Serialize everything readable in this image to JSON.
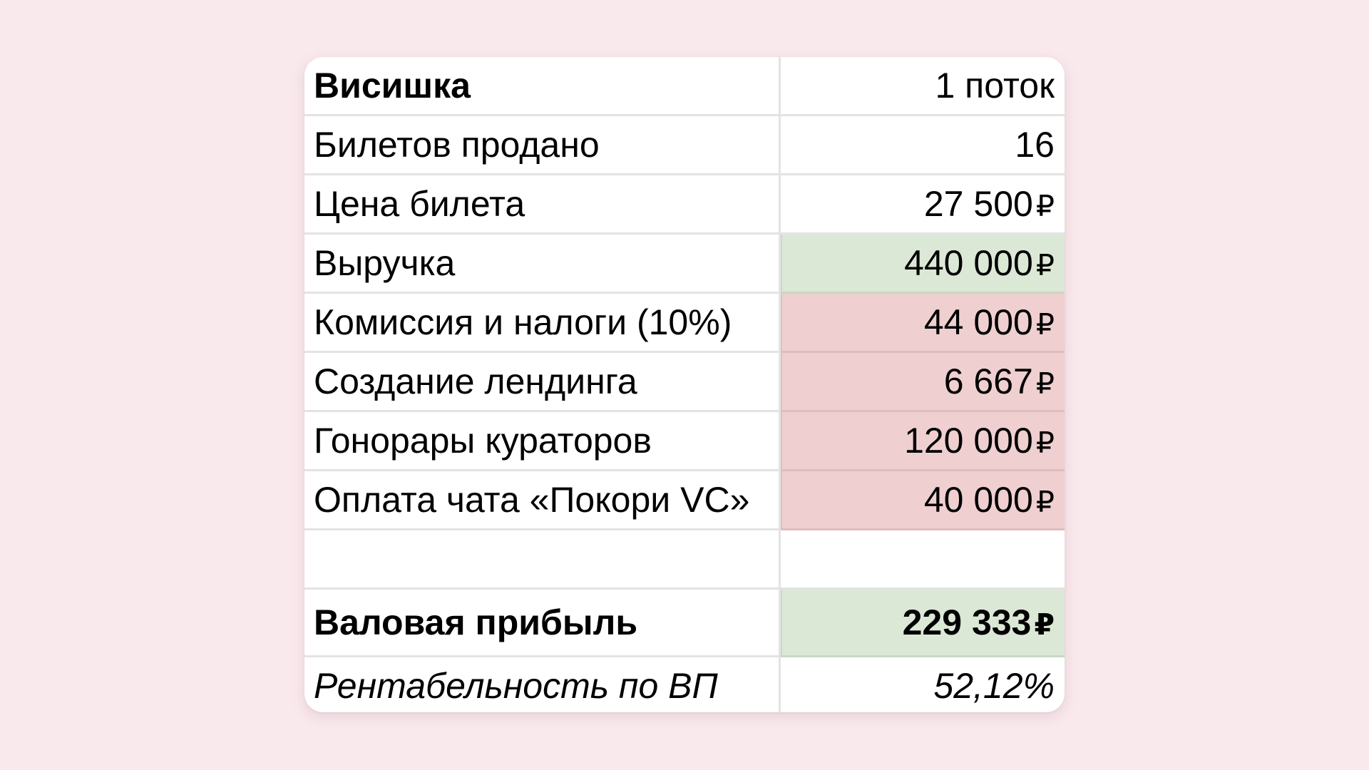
{
  "colors": {
    "page_background": "#f9e8ec",
    "card_background": "#ffffff",
    "gridline": "#e3e3e3",
    "revenue_fill": "#dce8d6",
    "expense_fill": "#efcfd0",
    "profit_fill": "#dce8d6"
  },
  "table": {
    "header": {
      "label": "Висишка",
      "value": "1 поток"
    },
    "rows": [
      {
        "label": "Билетов продано",
        "value": "16",
        "currency": ""
      },
      {
        "label": "Цена билета",
        "value": "27 500",
        "currency": "₽"
      },
      {
        "label": "Выручка",
        "value": "440 000",
        "currency": "₽",
        "highlight": "green"
      },
      {
        "label": "Комиссия и налоги (10%)",
        "value": "44 000",
        "currency": "₽",
        "highlight": "red"
      },
      {
        "label": "Создание лендинга",
        "value": "6 667",
        "currency": "₽",
        "highlight": "red"
      },
      {
        "label": "Гонорары кураторов",
        "value": "120 000",
        "currency": "₽",
        "highlight": "red"
      },
      {
        "label": "Оплата чата «Покори VC»",
        "value": "40 000",
        "currency": "₽",
        "highlight": "red"
      }
    ],
    "empty_row": {
      "label": "",
      "value": ""
    },
    "total": {
      "label": "Валовая прибыль",
      "value": "229 333",
      "currency": "₽",
      "highlight": "green"
    },
    "margin": {
      "label": "Рентабельность по ВП",
      "value": "52,12%"
    }
  }
}
